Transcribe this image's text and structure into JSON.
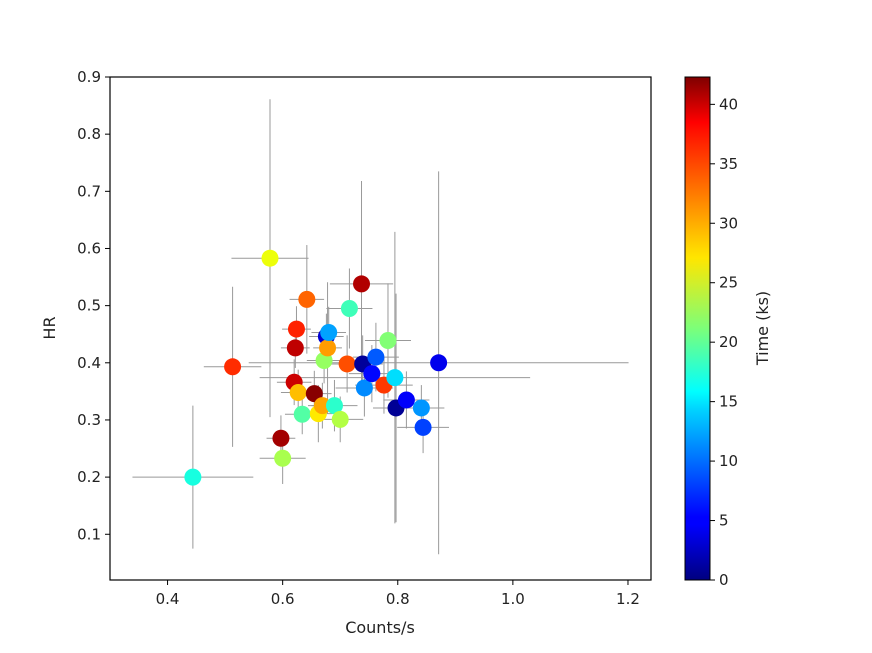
{
  "chart_data": {
    "type": "scatter",
    "title": "",
    "xlabel": "Counts/s",
    "ylabel": "HR",
    "xlim": [
      0.3,
      1.24
    ],
    "ylim": [
      0.02,
      0.9
    ],
    "x_ticks": [
      "0.4",
      "0.6",
      "0.8",
      "1.0",
      "1.2"
    ],
    "x_tick_values": [
      0.4,
      0.6,
      0.8,
      1.0,
      1.2
    ],
    "y_ticks": [
      "0.1",
      "0.2",
      "0.3",
      "0.4",
      "0.5",
      "0.6",
      "0.7",
      "0.8",
      "0.9"
    ],
    "y_tick_values": [
      0.1,
      0.2,
      0.3,
      0.4,
      0.5,
      0.6,
      0.7,
      0.8,
      0.9
    ],
    "colorbar": {
      "label": "Time (ks)",
      "colormap": "jet",
      "min": 0,
      "max": 42.3,
      "ticks": [
        "0",
        "5",
        "10",
        "15",
        "20",
        "25",
        "30",
        "35",
        "40"
      ],
      "tick_values": [
        0,
        5,
        10,
        15,
        20,
        25,
        30,
        35,
        40
      ]
    },
    "marker_color_error": "#999999",
    "points": [
      {
        "x": 0.444,
        "y": 0.2,
        "t": 16.0,
        "xerr": 0.105,
        "yerr": 0.125
      },
      {
        "x": 0.513,
        "y": 0.393,
        "t": 36.5,
        "xerr": 0.05,
        "yerr": 0.14
      },
      {
        "x": 0.578,
        "y": 0.583,
        "t": 27.0,
        "xerr": 0.067,
        "yerr": 0.278
      },
      {
        "x": 0.597,
        "y": 0.268,
        "t": 41.0,
        "xerr": 0.025,
        "yerr": 0.04
      },
      {
        "x": 0.6,
        "y": 0.233,
        "t": 23.5,
        "xerr": 0.04,
        "yerr": 0.045
      },
      {
        "x": 0.62,
        "y": 0.366,
        "t": 39.5,
        "xerr": 0.03,
        "yerr": 0.04
      },
      {
        "x": 0.622,
        "y": 0.426,
        "t": 40.0,
        "xerr": 0.025,
        "yerr": 0.035
      },
      {
        "x": 0.624,
        "y": 0.459,
        "t": 37.0,
        "xerr": 0.025,
        "yerr": 0.04
      },
      {
        "x": 0.627,
        "y": 0.348,
        "t": 30.0,
        "xerr": 0.03,
        "yerr": 0.04
      },
      {
        "x": 0.634,
        "y": 0.31,
        "t": 19.0,
        "xerr": 0.03,
        "yerr": 0.035
      },
      {
        "x": 0.642,
        "y": 0.511,
        "t": 34.0,
        "xerr": 0.03,
        "yerr": 0.095
      },
      {
        "x": 0.655,
        "y": 0.346,
        "t": 42.0,
        "xerr": 0.03,
        "yerr": 0.04
      },
      {
        "x": 0.662,
        "y": 0.311,
        "t": 28.0,
        "xerr": 0.025,
        "yerr": 0.05
      },
      {
        "x": 0.669,
        "y": 0.325,
        "t": 31.0,
        "xerr": 0.025,
        "yerr": 0.04
      },
      {
        "x": 0.672,
        "y": 0.404,
        "t": 22.5,
        "xerr": 0.03,
        "yerr": 0.04
      },
      {
        "x": 0.676,
        "y": 0.446,
        "t": 3.0,
        "xerr": 0.03,
        "yerr": 0.04
      },
      {
        "x": 0.678,
        "y": 0.426,
        "t": 31.5,
        "xerr": 0.025,
        "yerr": 0.115
      },
      {
        "x": 0.68,
        "y": 0.453,
        "t": 12.0,
        "xerr": 0.03,
        "yerr": 0.045
      },
      {
        "x": 0.69,
        "y": 0.325,
        "t": 17.0,
        "xerr": 0.04,
        "yerr": 0.045
      },
      {
        "x": 0.7,
        "y": 0.301,
        "t": 24.0,
        "xerr": 0.04,
        "yerr": 0.04
      },
      {
        "x": 0.712,
        "y": 0.398,
        "t": 35.0,
        "xerr": 0.035,
        "yerr": 0.05
      },
      {
        "x": 0.716,
        "y": 0.495,
        "t": 18.0,
        "xerr": 0.04,
        "yerr": 0.07
      },
      {
        "x": 0.737,
        "y": 0.538,
        "t": 40.5,
        "xerr": 0.055,
        "yerr": 0.18
      },
      {
        "x": 0.739,
        "y": 0.398,
        "t": 1.0,
        "xerr": 0.035,
        "yerr": 0.05
      },
      {
        "x": 0.742,
        "y": 0.356,
        "t": 11.0,
        "xerr": 0.05,
        "yerr": 0.05
      },
      {
        "x": 0.755,
        "y": 0.381,
        "t": 5.5,
        "xerr": 0.04,
        "yerr": 0.05
      },
      {
        "x": 0.762,
        "y": 0.41,
        "t": 9.0,
        "xerr": 0.04,
        "yerr": 0.06
      },
      {
        "x": 0.776,
        "y": 0.361,
        "t": 36.0,
        "xerr": 0.05,
        "yerr": 0.05
      },
      {
        "x": 0.783,
        "y": 0.439,
        "t": 21.5,
        "xerr": 0.04,
        "yerr": 0.1
      },
      {
        "x": 0.795,
        "y": 0.374,
        "t": 14.5,
        "xerr": 0.235,
        "yerr": 0.255
      },
      {
        "x": 0.797,
        "y": 0.321,
        "t": 0.8,
        "xerr": 0.04,
        "yerr": 0.2
      },
      {
        "x": 0.815,
        "y": 0.335,
        "t": 4.5,
        "xerr": 0.04,
        "yerr": 0.05
      },
      {
        "x": 0.841,
        "y": 0.321,
        "t": 11.5,
        "xerr": 0.04,
        "yerr": 0.04
      },
      {
        "x": 0.844,
        "y": 0.287,
        "t": 8.0,
        "xerr": 0.045,
        "yerr": 0.045
      },
      {
        "x": 0.871,
        "y": 0.4,
        "t": 4.0,
        "xerr": 0.33,
        "yerr": 0.335
      }
    ]
  }
}
